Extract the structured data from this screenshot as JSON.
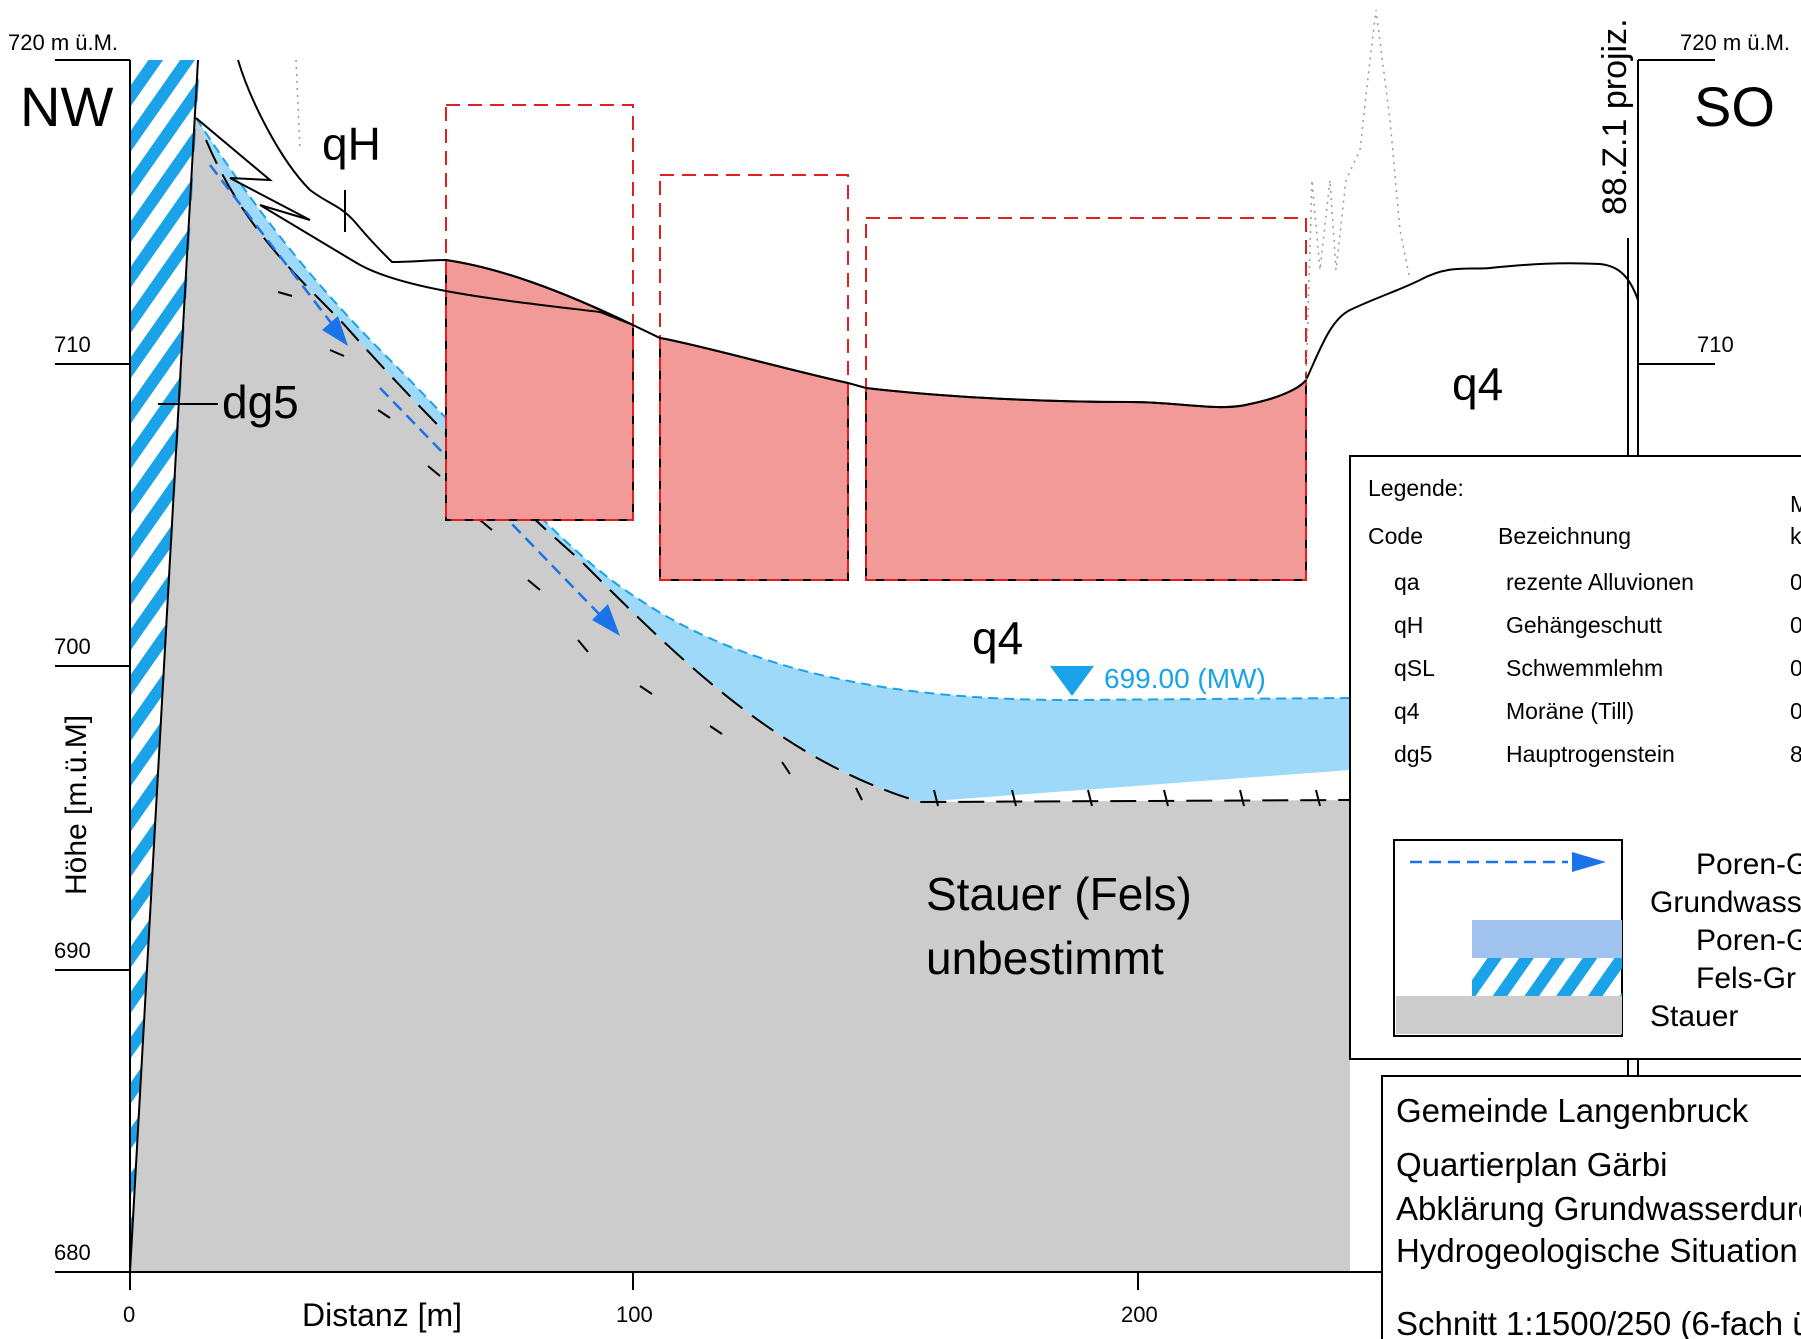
{
  "section": {
    "left_direction": "NW",
    "right_direction": "SO",
    "left_top_label": "720 m ü.M.",
    "right_top_label": "720 m ü.M.",
    "projection_label": "88.Z.1 projiz."
  },
  "axes": {
    "ylabel": "Höhe [m.ü.M]",
    "xlabel": "Distanz [m]",
    "y_ticks": [
      "710",
      "700",
      "690",
      "680"
    ],
    "right_y_ticks": [
      "710"
    ],
    "x_ticks": [
      "0",
      "100",
      "200"
    ]
  },
  "units": {
    "qH": "qH",
    "dg5": "dg5",
    "q4_upper": "q4",
    "q4_lower": "q4"
  },
  "water_level": {
    "label": "699.00 (MW)",
    "value_m": 699.0
  },
  "aquitard_label": {
    "line1": "Stauer (Fels)",
    "line2": "unbestimmt"
  },
  "legend": {
    "title": "Legende:",
    "col_code": "Code",
    "col_name": "Bezeichnung",
    "col_extra_top": "M",
    "col_extra_sub": "k",
    "rows": [
      {
        "code": "qa",
        "name": "rezente Alluvionen",
        "value": "0"
      },
      {
        "code": "qH",
        "name": "Gehängeschutt",
        "value": "0"
      },
      {
        "code": "qSL",
        "name": "Schwemmlehm",
        "value": "0"
      },
      {
        "code": "q4",
        "name": "Moräne (Till)",
        "value": "0"
      },
      {
        "code": "dg5",
        "name": "Hauptrogenstein",
        "value": "8"
      }
    ],
    "symbols": {
      "flow_line1": "Poren-G",
      "flow_line2": "Grundwass",
      "porous": "Poren-G",
      "fissured": "Fels-Gr",
      "aquitard": "Stauer"
    }
  },
  "title_block": {
    "municipality": "Gemeinde Langenbruck",
    "plan": "Quartierplan Gärbi",
    "purpose": "Abklärung Grundwasserdurchfl",
    "subject": "Hydrogeologische Situation",
    "scale": "Schnitt 1:1500/250 (6-fach üb"
  },
  "colors": {
    "groundwater": "#9fd9fa",
    "fissured_aquifer": "#1aa3e8",
    "aquitard": "#cccccc",
    "excavation_fill": "#f29a98",
    "excavation_outline": "#e02020",
    "flow_arrow": "#1a73e8",
    "legend_porous": "#9fc3ee"
  }
}
